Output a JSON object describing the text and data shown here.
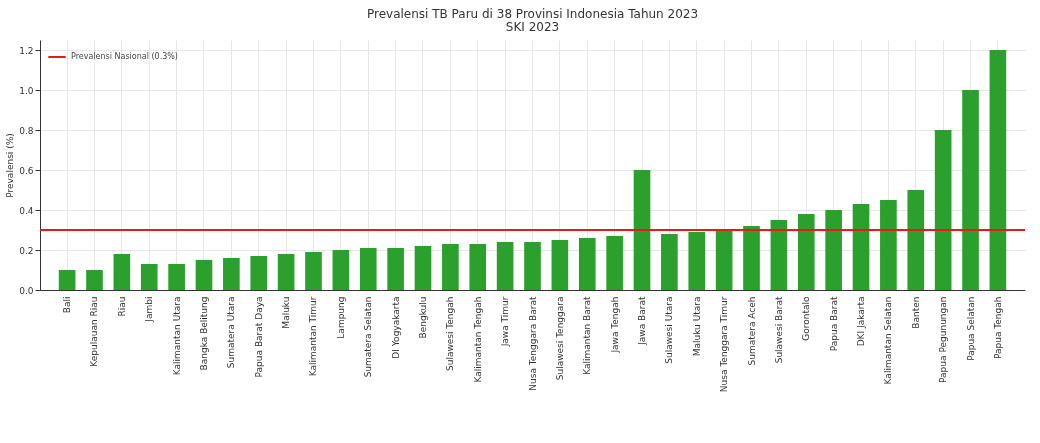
{
  "chart_data": {
    "type": "bar",
    "title": "Prevalensi TB Paru di 38 Provinsi Indonesia Tahun 2023",
    "subtitle": "SKI 2023",
    "ylabel": "Prevalensi (%)",
    "categories": [
      "Bali",
      "Kepulauan Riau",
      "Riau",
      "Jambi",
      "Kalimantan Utara",
      "Bangka Belitung",
      "Sumatera Utara",
      "Papua Barat Daya",
      "Maluku",
      "Kalimantan Timur",
      "Lampung",
      "Sumatera Selatan",
      "DI Yogyakarta",
      "Bengkulu",
      "Sulawesi Tengah",
      "Kalimantan Tengah",
      "Jawa Timur",
      "Nusa Tenggara Barat",
      "Sulawesi Tenggara",
      "Kalimantan Barat",
      "Jawa Tengah",
      "Jawa Barat",
      "Sulawesi Utara",
      "Maluku Utara",
      "Nusa Tenggara Timur",
      "Sumatera Aceh",
      "Sulawesi Barat",
      "Gorontalo",
      "Papua Barat",
      "DKI Jakarta",
      "Kalimantan Selatan",
      "Banten",
      "Papua Pegunungan",
      "Papua Selatan",
      "Papua Tengah"
    ],
    "values": [
      0.1,
      0.1,
      0.18,
      0.13,
      0.13,
      0.15,
      0.16,
      0.17,
      0.18,
      0.19,
      0.2,
      0.21,
      0.21,
      0.22,
      0.23,
      0.23,
      0.24,
      0.24,
      0.25,
      0.26,
      0.27,
      0.6,
      0.28,
      0.29,
      0.3,
      0.32,
      0.35,
      0.38,
      0.4,
      0.43,
      0.45,
      0.5,
      0.8,
      1.0,
      1.2
    ],
    "color": "#2ca02c",
    "ylim": [
      0,
      1.25
    ],
    "yticks": [
      {
        "value": 0,
        "label": "0.0"
      },
      0.2,
      0.4,
      0.6,
      0.8,
      {
        "value": 1,
        "label": "1.0"
      },
      1.2
    ],
    "ref_lines": [
      {
        "axis": "y",
        "value": 0.3,
        "label": "Prevalensi Nasional (0.3%)",
        "color": "#e41a1c"
      }
    ],
    "grid": true,
    "legend": "top left"
  }
}
